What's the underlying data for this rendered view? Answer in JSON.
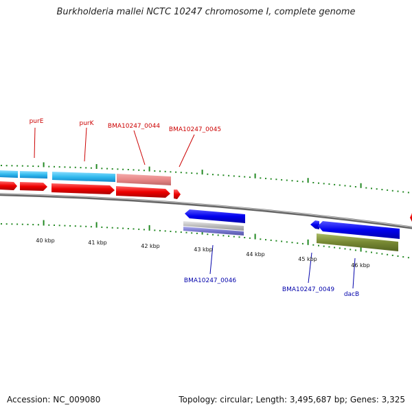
{
  "title": "Burkholderia mallei NCTC 10247 chromosome I, complete genome",
  "footer": {
    "accession_label": "Accession:",
    "accession": "NC_009080",
    "topology_label": "Topology:",
    "topology": "circular",
    "length_label": "Length:",
    "length": "3,495,687 bp",
    "genes_label": "Genes:",
    "genes": "3,325"
  },
  "colors": {
    "forward_gene": "#ff0000",
    "reverse_gene": "#0000ff",
    "cds_forward": "#33bbee",
    "cds_pseudo": "#ee8888",
    "cds_reverse_grey": "#aaaaaa",
    "cds_reverse_purple": "#7777cc",
    "cds_reverse_green": "#778833",
    "backbone": "#888888",
    "ticks": "#228822"
  },
  "kbp_labels": [
    "40 kbp",
    "41 kbp",
    "42 kbp",
    "43 kbp",
    "44 kbp",
    "45 kbp",
    "46 kbp"
  ],
  "forward_genes": [
    {
      "label": "purE"
    },
    {
      "label": "purK"
    },
    {
      "label": "BMA10247_0044"
    },
    {
      "label": "BMA10247_0045"
    }
  ],
  "reverse_genes": [
    {
      "label": "BMA10247_0046"
    },
    {
      "label": "BMA10247_0049"
    },
    {
      "label": "dacB"
    }
  ]
}
